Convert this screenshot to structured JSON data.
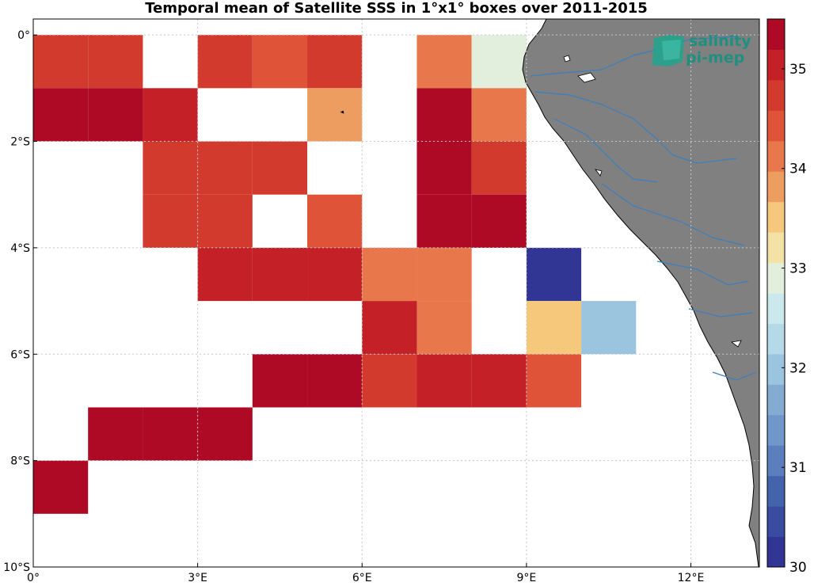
{
  "title": "Temporal mean of Satellite SSS in 1°x1° boxes over 2011-2015",
  "logo": {
    "line1": "salinity",
    "line2": "pi-mep"
  },
  "map": {
    "lon_range": [
      0,
      13.25
    ],
    "lat_range": [
      -10,
      0.3
    ],
    "x_ticks": [
      {
        "value": 0,
        "label": "0°"
      },
      {
        "value": 3,
        "label": "3°E"
      },
      {
        "value": 6,
        "label": "6°E"
      },
      {
        "value": 9,
        "label": "9°E"
      },
      {
        "value": 12,
        "label": "12°E"
      }
    ],
    "y_ticks": [
      {
        "value": 0,
        "label": "0°"
      },
      {
        "value": -2,
        "label": "2°S"
      },
      {
        "value": -4,
        "label": "4°S"
      },
      {
        "value": -6,
        "label": "6°S"
      },
      {
        "value": -8,
        "label": "8°S"
      },
      {
        "value": -10,
        "label": "10°S"
      }
    ],
    "land_color": "#808080",
    "river_color": "#3a7fbf",
    "grid": "dotted"
  },
  "colorbar": {
    "min": 30,
    "max": 35.5,
    "ticks": [
      30,
      31,
      32,
      33,
      34,
      35
    ],
    "colors": [
      "#313695",
      "#3a4ba2",
      "#4463ad",
      "#5b7fbd",
      "#6f97c9",
      "#84acd3",
      "#9bc5df",
      "#b4d9e8",
      "#cbe8ec",
      "#e2efdc",
      "#f4e1a5",
      "#f5c87c",
      "#ee9d60",
      "#e8774b",
      "#df5339",
      "#d33a2e",
      "#c42027",
      "#ae0a25"
    ]
  },
  "chart_data": {
    "type": "heatmap",
    "title": "Temporal mean of Satellite SSS in 1°x1° boxes over 2011-2015",
    "variable": "SSS",
    "vmin": 30,
    "vmax": 35.5,
    "cells": [
      {
        "lon": 0,
        "lat": 0,
        "sss": 34.8
      },
      {
        "lon": 1,
        "lat": 0,
        "sss": 34.8
      },
      {
        "lon": 3,
        "lat": 0,
        "sss": 34.8
      },
      {
        "lon": 4,
        "lat": 0,
        "sss": 34.5
      },
      {
        "lon": 5,
        "lat": 0,
        "sss": 34.8
      },
      {
        "lon": 7,
        "lat": 0,
        "sss": 34.2
      },
      {
        "lon": 8,
        "lat": 0,
        "sss": 32.8
      },
      {
        "lon": 0,
        "lat": -1,
        "sss": 35.3
      },
      {
        "lon": 1,
        "lat": -1,
        "sss": 35.2
      },
      {
        "lon": 2,
        "lat": -1,
        "sss": 35.0
      },
      {
        "lon": 5,
        "lat": -1,
        "sss": 33.8
      },
      {
        "lon": 7,
        "lat": -1,
        "sss": 35.3
      },
      {
        "lon": 8,
        "lat": -1,
        "sss": 34.2
      },
      {
        "lon": 2,
        "lat": -2,
        "sss": 34.8
      },
      {
        "lon": 3,
        "lat": -2,
        "sss": 34.8
      },
      {
        "lon": 4,
        "lat": -2,
        "sss": 34.8
      },
      {
        "lon": 7,
        "lat": -2,
        "sss": 35.5
      },
      {
        "lon": 8,
        "lat": -2,
        "sss": 34.8
      },
      {
        "lon": 2,
        "lat": -3,
        "sss": 34.8
      },
      {
        "lon": 3,
        "lat": -3,
        "sss": 34.8
      },
      {
        "lon": 5,
        "lat": -3,
        "sss": 34.5
      },
      {
        "lon": 7,
        "lat": -3,
        "sss": 35.2
      },
      {
        "lon": 8,
        "lat": -3,
        "sss": 35.5
      },
      {
        "lon": 3,
        "lat": -4,
        "sss": 35.0
      },
      {
        "lon": 4,
        "lat": -4,
        "sss": 35.0
      },
      {
        "lon": 5,
        "lat": -4,
        "sss": 35.0
      },
      {
        "lon": 6,
        "lat": -4,
        "sss": 34.2
      },
      {
        "lon": 7,
        "lat": -4,
        "sss": 34.2
      },
      {
        "lon": 9,
        "lat": -4,
        "sss": 30.0
      },
      {
        "lon": 6,
        "lat": -5,
        "sss": 35.0
      },
      {
        "lon": 7,
        "lat": -5,
        "sss": 34.2
      },
      {
        "lon": 9,
        "lat": -5,
        "sss": 33.5
      },
      {
        "lon": 10,
        "lat": -5,
        "sss": 32.0
      },
      {
        "lon": 4,
        "lat": -6,
        "sss": 35.2
      },
      {
        "lon": 5,
        "lat": -6,
        "sss": 35.5
      },
      {
        "lon": 6,
        "lat": -6,
        "sss": 34.8
      },
      {
        "lon": 7,
        "lat": -6,
        "sss": 35.0
      },
      {
        "lon": 8,
        "lat": -6,
        "sss": 35.0
      },
      {
        "lon": 9,
        "lat": -6,
        "sss": 34.5
      },
      {
        "lon": 1,
        "lat": -7,
        "sss": 35.2
      },
      {
        "lon": 2,
        "lat": -7,
        "sss": 35.3
      },
      {
        "lon": 3,
        "lat": -7,
        "sss": 35.3
      },
      {
        "lon": 0,
        "lat": -8,
        "sss": 35.5
      }
    ]
  }
}
